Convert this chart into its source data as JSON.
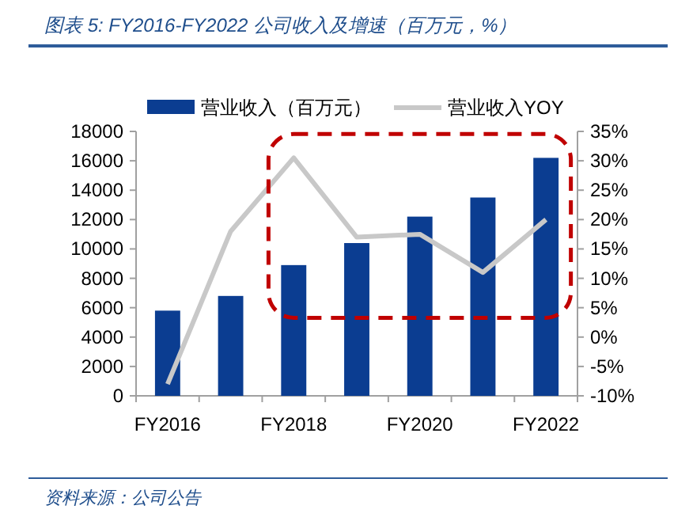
{
  "chart_data": {
    "type": "bar",
    "title": "图表 5: FY2016-FY2022 公司收入及增速（百万元，%）",
    "categories": [
      "FY2016",
      null,
      "FY2018",
      null,
      "FY2020",
      null,
      "FY2022"
    ],
    "series": [
      {
        "name": "营业收入（百万元）",
        "color": "#0b3d91",
        "values": [
          5800,
          6800,
          8900,
          10400,
          12200,
          13500,
          16200
        ]
      },
      {
        "name": "营业收入YOY",
        "type": "line",
        "axis": "y2",
        "color": "#c8c8c8",
        "values": [
          -8,
          18,
          30.5,
          17,
          17.5,
          11,
          20
        ]
      }
    ],
    "ylim": [
      0,
      18000
    ],
    "yticks": [
      0,
      2000,
      4000,
      6000,
      8000,
      10000,
      12000,
      14000,
      16000,
      18000
    ],
    "y2lim": [
      -10,
      35
    ],
    "y2ticks": [
      {
        "value": -10,
        "label": "-10%"
      },
      {
        "value": -5,
        "label": "-5%"
      },
      {
        "value": 0,
        "label": "0%"
      },
      {
        "value": 5,
        "label": "5%"
      },
      {
        "value": 10,
        "label": "10%"
      },
      {
        "value": 15,
        "label": "15%"
      },
      {
        "value": 20,
        "label": "20%"
      },
      {
        "value": 25,
        "label": "25%"
      },
      {
        "value": 30,
        "label": "30%"
      },
      {
        "value": 35,
        "label": "35%"
      }
    ],
    "grid": false,
    "legend": "top",
    "marker": "none",
    "annotations": [
      "资料来源：公司公告"
    ]
  }
}
